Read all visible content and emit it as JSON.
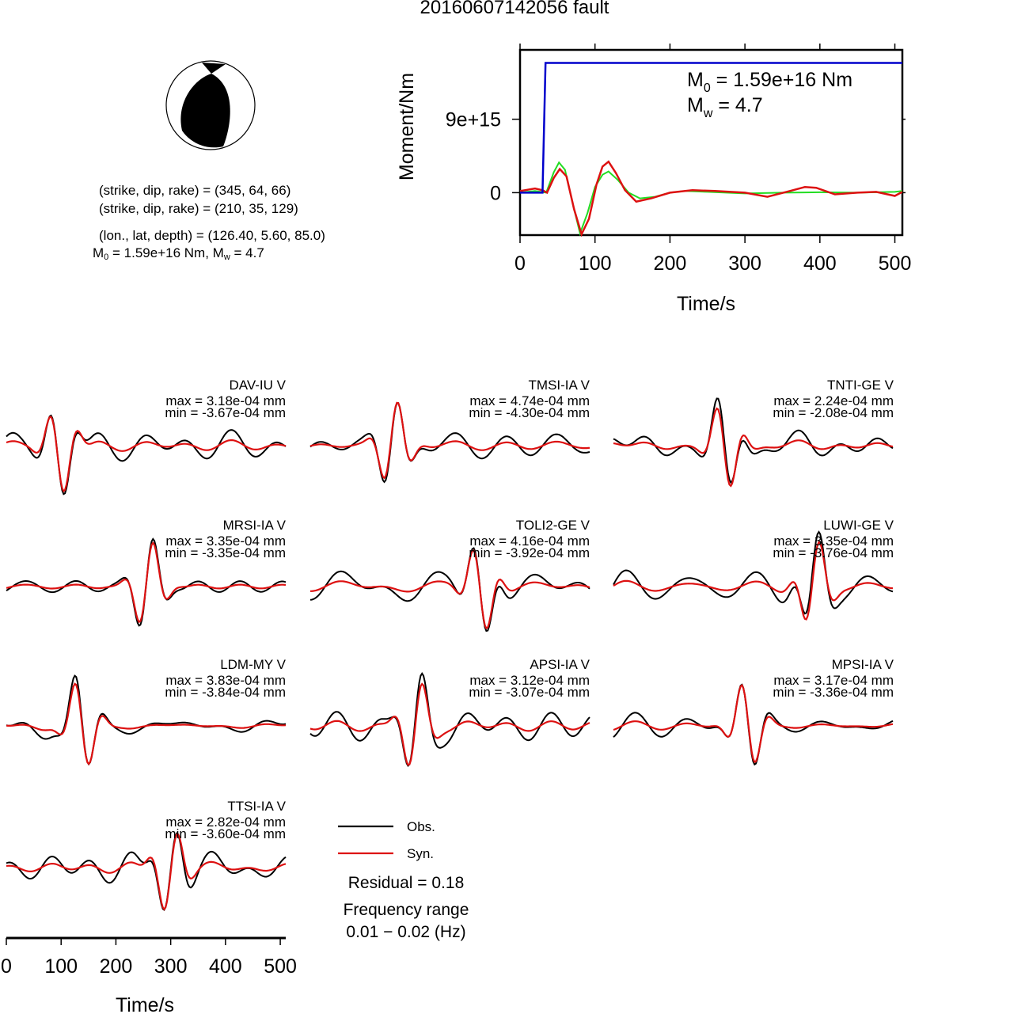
{
  "title": "20160607142056 fault",
  "source": {
    "planes": [
      "(strike, dip, rake) = (345, 64, 66)",
      "(strike, dip, rake) = (210, 35, 129)"
    ],
    "location": "(lon., lat, depth) = (126.40, 5.60, 85.0)",
    "m0_prefix": "M",
    "m0_sub": "0",
    "m0_mid": " = 1.59e+16 Nm, M",
    "mw_sub": "w",
    "mw_suffix": " = 4.7"
  },
  "moment_panel": {
    "ylabel": "Moment/Nm",
    "xlabel": "Time/s",
    "xticks": [
      "0",
      "100",
      "200",
      "300",
      "400",
      "500"
    ],
    "yticks": [
      "9e+15",
      "0"
    ],
    "m0_label": "M",
    "m0_sub": "0",
    "m0_value": " = 1.59e+16 Nm",
    "mw_label": "M",
    "mw_sub": "w",
    "mw_value": " = 4.7"
  },
  "chart_data": {
    "type": "line",
    "moment_function": {
      "xlim": [
        0,
        510
      ],
      "ylim": [
        -5200000000000000.0,
        1.75e+16
      ],
      "colors": {
        "cumulative": "#0000cc",
        "green": "#22dd22",
        "red": "#dd1111"
      },
      "cumulative": {
        "x": [
          0,
          30,
          34,
          510
        ],
        "y": [
          0,
          0,
          1.59e+16,
          1.59e+16
        ]
      },
      "green": {
        "x": [
          0,
          20,
          35,
          45,
          52,
          60,
          70,
          80,
          90,
          100,
          110,
          118,
          130,
          145,
          160,
          180,
          200,
          220,
          250,
          300,
          350,
          400,
          450,
          500,
          510
        ],
        "y": [
          0,
          200000000000000.0,
          0,
          2500000000000000.0,
          3700000000000000.0,
          2800000000000000.0,
          -1200000000000000.0,
          -5000000000000000.0,
          -2500000000000000.0,
          700000000000000.0,
          2200000000000000.0,
          2600000000000000.0,
          1600000000000000.0,
          0,
          -700000000000000.0,
          -500000000000000.0,
          0,
          200000000000000.0,
          100000000000000.0,
          -100000000000000.0,
          0,
          50000000000000.0,
          0,
          100000000000000.0,
          200000000000000.0
        ]
      },
      "red": {
        "x": [
          0,
          20,
          30,
          36,
          45,
          53,
          62,
          72,
          82,
          92,
          102,
          110,
          118,
          128,
          140,
          155,
          175,
          200,
          230,
          260,
          300,
          330,
          360,
          380,
          395,
          420,
          450,
          475,
          500,
          510
        ],
        "y": [
          200000000000000.0,
          500000000000000.0,
          300000000000000.0,
          0,
          1800000000000000.0,
          2900000000000000.0,
          2000000000000000.0,
          -2000000000000000.0,
          -5100000000000000.0,
          -3200000000000000.0,
          1000000000000000.0,
          3200000000000000.0,
          3800000000000000.0,
          2400000000000000.0,
          300000000000000.0,
          -1100000000000000.0,
          -700000000000000.0,
          0,
          300000000000000.0,
          200000000000000.0,
          0,
          -500000000000000.0,
          200000000000000.0,
          700000000000000.0,
          600000000000000.0,
          -200000000000000.0,
          0,
          100000000000000.0,
          -400000000000000.0,
          100000000000000.0
        ]
      }
    },
    "waveforms": {
      "xlim": [
        0,
        510
      ],
      "xticks": [
        "0",
        "100",
        "200",
        "300",
        "400",
        "500"
      ],
      "xlabel": "Time/s",
      "colors": {
        "obs": "#000000",
        "syn": "#dd1111"
      },
      "stations": [
        {
          "name": "DAV-IU V",
          "max": "max = 3.18e-04 mm",
          "min": "min = -3.67e-04 mm",
          "max_v": 0.000318,
          "min_v": -0.000367
        },
        {
          "name": "TMSI-IA V",
          "max": "max = 4.74e-04 mm",
          "min": "min = -4.30e-04 mm",
          "max_v": 0.000474,
          "min_v": -0.00043
        },
        {
          "name": "TNTI-GE V",
          "max": "max = 2.24e-04 mm",
          "min": "min = -2.08e-04 mm",
          "max_v": 0.000224,
          "min_v": -0.000208
        },
        {
          "name": "MRSI-IA V",
          "max": "max = 3.35e-04 mm",
          "min": "min = -3.35e-04 mm",
          "max_v": 0.000335,
          "min_v": -0.000335
        },
        {
          "name": "TOLI2-GE V",
          "max": "max = 4.16e-04 mm",
          "min": "min = -3.92e-04 mm",
          "max_v": 0.000416,
          "min_v": -0.000392
        },
        {
          "name": "LUWI-GE V",
          "max": "max = 3.35e-04 mm",
          "min": "min = -3.76e-04 mm",
          "max_v": 0.000335,
          "min_v": -0.000376
        },
        {
          "name": "LDM-MY V",
          "max": "max = 3.83e-04 mm",
          "min": "min = -3.84e-04 mm",
          "max_v": 0.000383,
          "min_v": -0.000384
        },
        {
          "name": "APSI-IA V",
          "max": "max = 3.12e-04 mm",
          "min": "min = -3.07e-04 mm",
          "max_v": 0.000312,
          "min_v": -0.000307
        },
        {
          "name": "MPSI-IA V",
          "max": "max = 3.17e-04 mm",
          "min": "min = -3.36e-04 mm",
          "max_v": 0.000317,
          "min_v": -0.000336
        },
        {
          "name": "TTSI-IA V",
          "max": "max = 2.82e-04 mm",
          "min": "min = -3.60e-04 mm",
          "max_v": 0.000282,
          "min_v": -0.00036
        }
      ]
    }
  },
  "legend": {
    "obs": "Obs.",
    "syn": "Syn.",
    "residual": "Residual = 0.18",
    "freq_title": "Frequency range",
    "freq_range": "0.01 − 0.02 (Hz)"
  }
}
